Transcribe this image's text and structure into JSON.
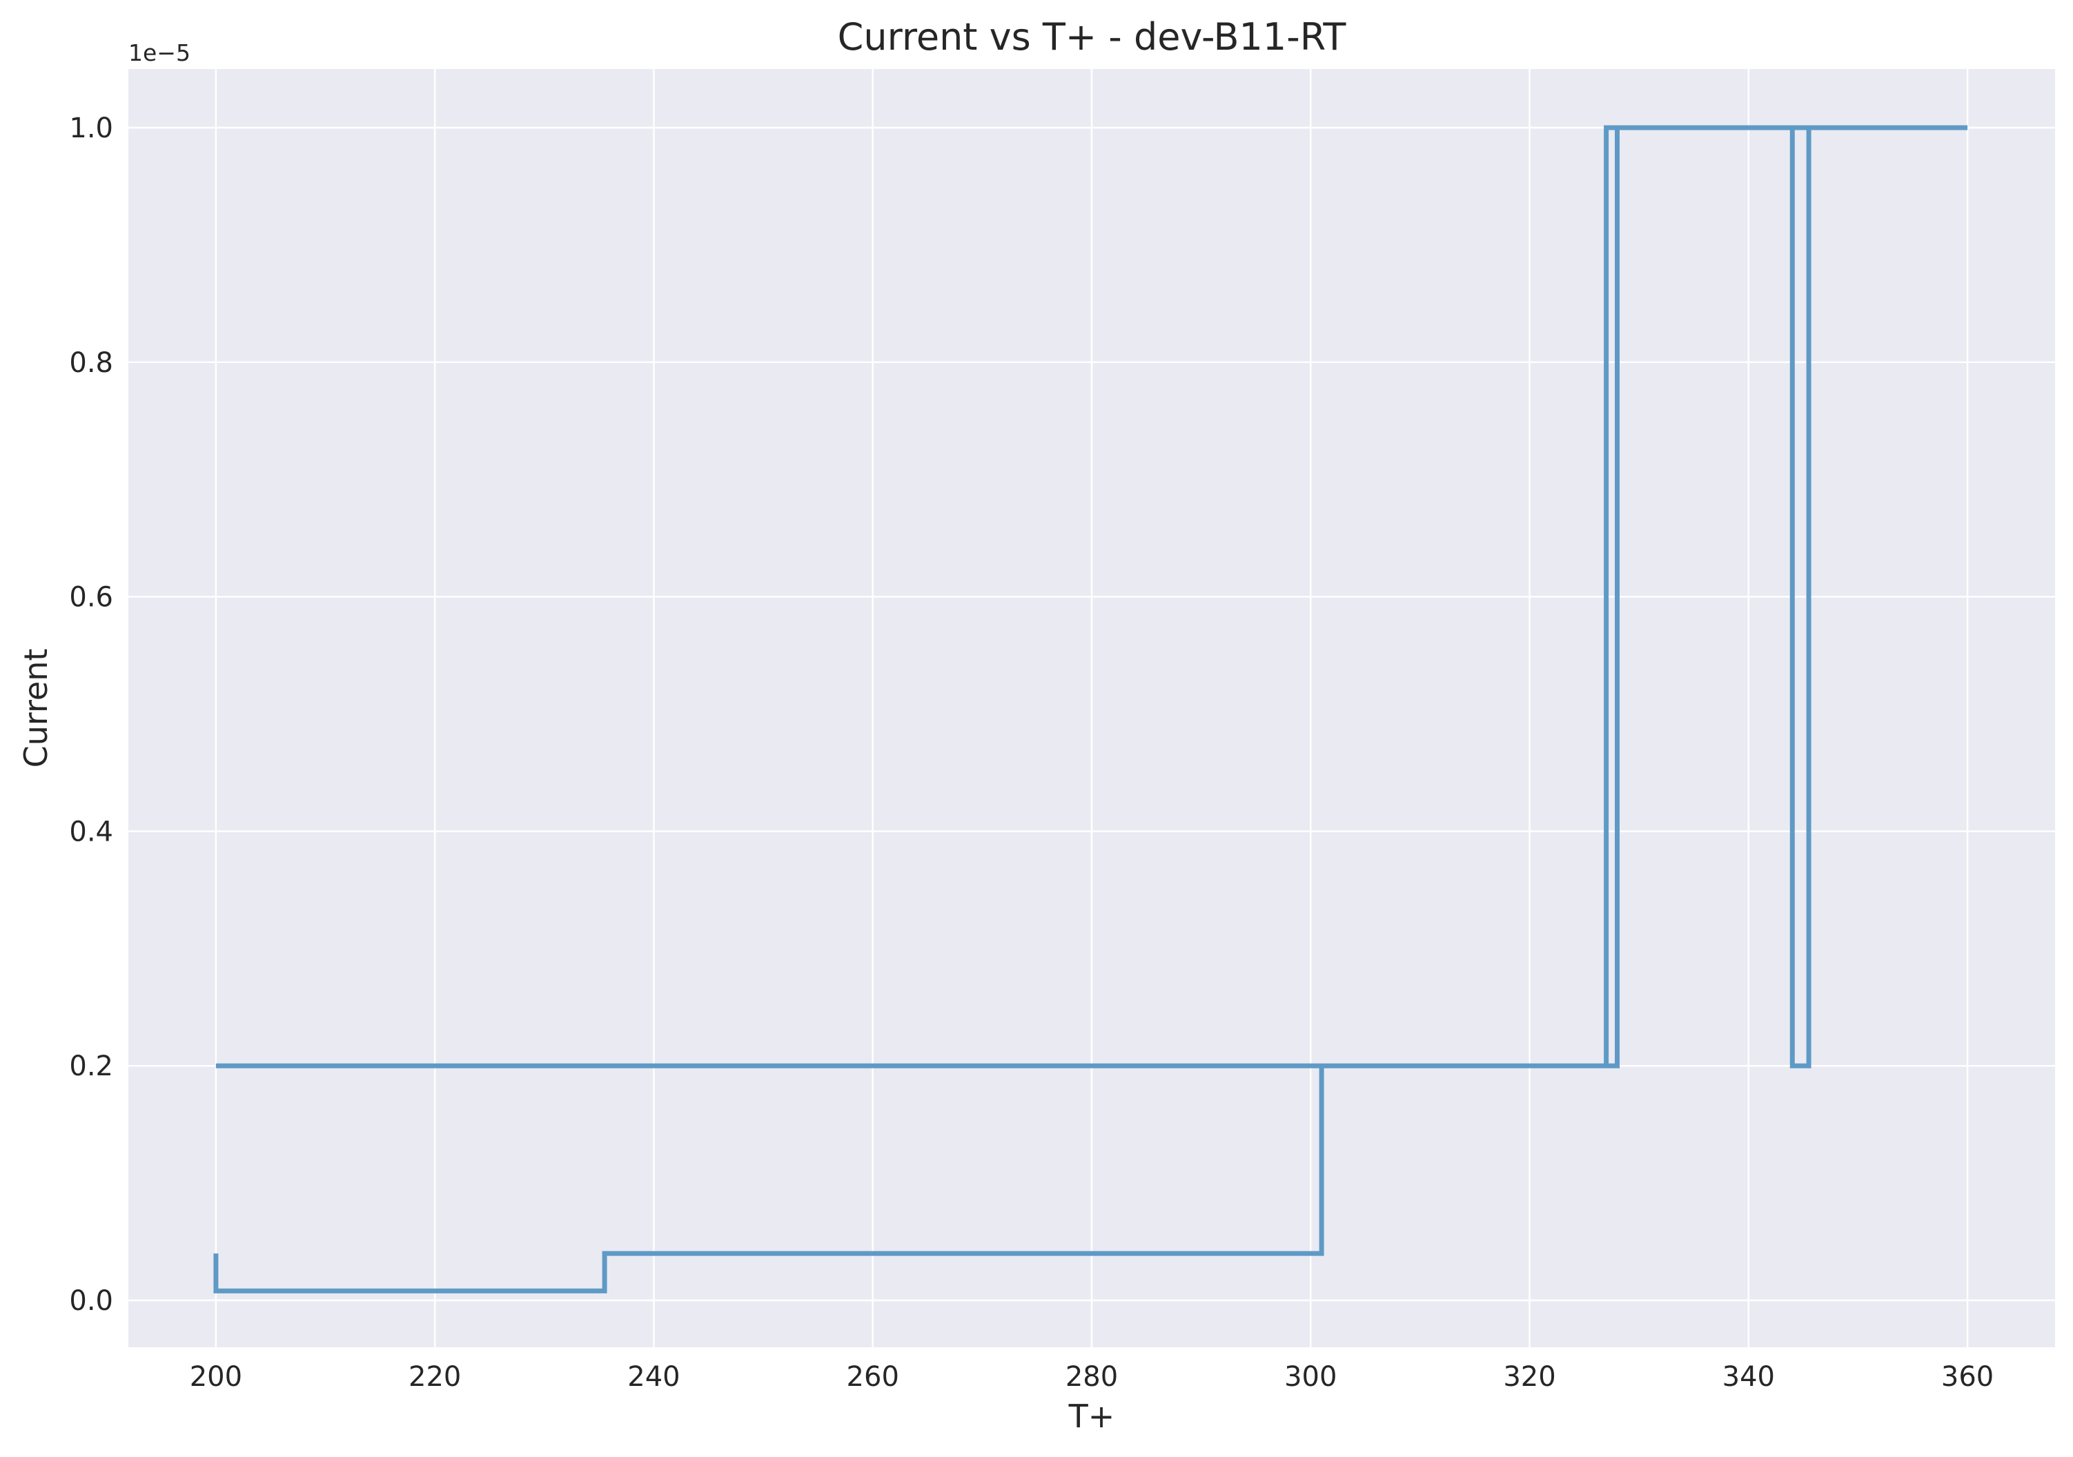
{
  "chart_data": {
    "type": "line",
    "title": "Current vs T+ - dev-B11-RT",
    "xlabel": "T+",
    "ylabel": "Current",
    "y_offset_label": "1e−5",
    "xlim": [
      192,
      368
    ],
    "ylim": [
      -0.04,
      1.05
    ],
    "x_ticks": [
      200,
      220,
      240,
      260,
      280,
      300,
      320,
      340,
      360
    ],
    "y_ticks": [
      0.0,
      0.2,
      0.4,
      0.6,
      0.8,
      1.0
    ],
    "x_tick_labels": [
      "200",
      "220",
      "240",
      "260",
      "280",
      "300",
      "320",
      "340",
      "360"
    ],
    "y_tick_labels": [
      "0.0",
      "0.2",
      "0.4",
      "0.6",
      "0.8",
      "1.0"
    ],
    "grid": true,
    "background": "#eaeaf2",
    "grid_color": "#ffffff",
    "series": [
      {
        "color": "#5f9ac6",
        "x": [
          200,
          200,
          235.5,
          235.5,
          301,
          301,
          327,
          327,
          344,
          344,
          345.5,
          345.5,
          328,
          328,
          200
        ],
        "y": [
          0.04,
          0.008,
          0.008,
          0.04,
          0.04,
          0.2,
          0.2,
          1.0,
          1.0,
          0.2,
          0.2,
          1.0,
          1.0,
          0.2,
          0.2
        ]
      },
      {
        "color": "#5f9ac6",
        "x": [
          344,
          360
        ],
        "y": [
          1.0,
          1.0
        ]
      }
    ]
  }
}
